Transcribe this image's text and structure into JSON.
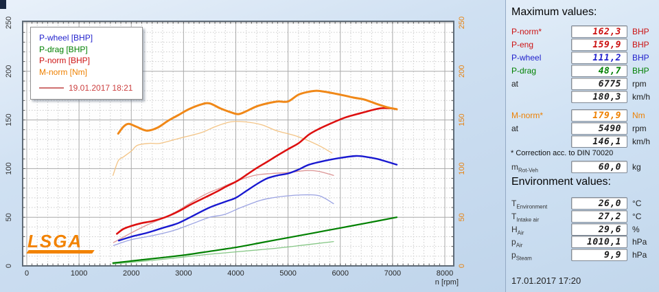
{
  "chart": {
    "x_label": "n [rpm]",
    "x_ticks": [
      "0",
      "1000",
      "2000",
      "3000",
      "4000",
      "5000",
      "6000",
      "7000",
      "8000"
    ],
    "y_ticks_left": [
      "0",
      "50",
      "100",
      "150",
      "200",
      "250"
    ],
    "y_ticks_right": [
      "0",
      "50",
      "100",
      "150",
      "200",
      "250"
    ],
    "legend": {
      "items": [
        {
          "label": "P-wheel [BHP]",
          "color": "#2020cc"
        },
        {
          "label": "P-drag [BHP]",
          "color": "#008000"
        },
        {
          "label": "P-norm [BHP]",
          "color": "#cc1111"
        },
        {
          "label": "M-norm [Nm]",
          "color": "#ee8000"
        }
      ],
      "ref_date_label": "19.01.2017 18:21",
      "ref_color": "#cc4040"
    },
    "logo_text": "LSGA"
  },
  "chart_data": {
    "type": "line",
    "xlabel": "n [rpm]",
    "x_range": [
      0,
      8000
    ],
    "y_range_left_BHP": [
      0,
      250
    ],
    "y_range_right_Nm": [
      0,
      250
    ],
    "grid": "major 1000 rpm / 50 units solid, minor 200 rpm / 10 units dotted",
    "legend_position": "top-left",
    "series": [
      {
        "name": "P-drag-ref",
        "unit": "BHP",
        "run": "reference-19.01.2017",
        "color": "#85c785",
        "width": 1.3,
        "points": [
          [
            1650,
            2
          ],
          [
            2645,
            7
          ],
          [
            3500,
            12
          ],
          [
            4750,
            18
          ],
          [
            5400,
            22
          ],
          [
            5870,
            25
          ]
        ]
      },
      {
        "name": "P-wheel-ref",
        "unit": "BHP",
        "run": "reference-19.01.2017",
        "color": "#9aa2e2",
        "width": 1.3,
        "points": [
          [
            1660,
            21
          ],
          [
            2000,
            27
          ],
          [
            2300,
            30
          ],
          [
            2645,
            34
          ],
          [
            2900,
            38
          ],
          [
            3200,
            44
          ],
          [
            3500,
            50
          ],
          [
            3790,
            53
          ],
          [
            4100,
            60
          ],
          [
            4450,
            67
          ],
          [
            4700,
            70
          ],
          [
            5000,
            72
          ],
          [
            5300,
            73
          ],
          [
            5600,
            72
          ],
          [
            5870,
            64
          ]
        ]
      },
      {
        "name": "P-norm-ref",
        "unit": "BHP",
        "run": "reference-19.01.2017",
        "color": "#dc9494",
        "width": 1.3,
        "points": [
          [
            1660,
            24
          ],
          [
            2000,
            34
          ],
          [
            2300,
            42
          ],
          [
            2645,
            50
          ],
          [
            2900,
            57
          ],
          [
            3170,
            66
          ],
          [
            3435,
            74
          ],
          [
            3700,
            80
          ],
          [
            3960,
            86
          ],
          [
            4355,
            93
          ],
          [
            4700,
            95
          ],
          [
            5000,
            96
          ],
          [
            5365,
            98
          ],
          [
            5600,
            97
          ],
          [
            5870,
            93
          ]
        ]
      },
      {
        "name": "M-norm-ref",
        "unit": "Nm",
        "run": "reference-19.01.2017",
        "color": "#f3c384",
        "width": 1.3,
        "points": [
          [
            1650,
            93
          ],
          [
            1750,
            108
          ],
          [
            1850,
            112
          ],
          [
            2000,
            118
          ],
          [
            2120,
            124
          ],
          [
            2350,
            126
          ],
          [
            2550,
            126
          ],
          [
            2910,
            131
          ],
          [
            3340,
            137
          ],
          [
            3600,
            143
          ],
          [
            3900,
            148
          ],
          [
            4180,
            148
          ],
          [
            4500,
            145
          ],
          [
            4780,
            139
          ],
          [
            5185,
            133
          ],
          [
            5580,
            124
          ],
          [
            5840,
            116
          ]
        ]
      },
      {
        "name": "P-drag",
        "unit": "BHP",
        "run": "current-17.01.2017",
        "color": "#008000",
        "width": 2.2,
        "points": [
          [
            1650,
            3
          ],
          [
            2000,
            5
          ],
          [
            2500,
            8
          ],
          [
            3000,
            11
          ],
          [
            3500,
            15
          ],
          [
            4000,
            19
          ],
          [
            4500,
            24
          ],
          [
            5000,
            29
          ],
          [
            5500,
            34
          ],
          [
            6000,
            39
          ],
          [
            6500,
            44
          ],
          [
            7080,
            50
          ]
        ]
      },
      {
        "name": "P-wheel",
        "unit": "BHP",
        "run": "current-17.01.2017",
        "color": "#1818d0",
        "width": 2.4,
        "points": [
          [
            1760,
            26
          ],
          [
            2000,
            30
          ],
          [
            2300,
            34
          ],
          [
            2600,
            39
          ],
          [
            2900,
            44
          ],
          [
            3200,
            52
          ],
          [
            3500,
            60
          ],
          [
            3800,
            66
          ],
          [
            4000,
            70
          ],
          [
            4200,
            77
          ],
          [
            4400,
            84
          ],
          [
            4600,
            90
          ],
          [
            4800,
            93
          ],
          [
            5000,
            95
          ],
          [
            5200,
            99
          ],
          [
            5400,
            104
          ],
          [
            5700,
            108
          ],
          [
            6000,
            111
          ],
          [
            6300,
            113
          ],
          [
            6500,
            112
          ],
          [
            6700,
            110
          ],
          [
            6900,
            107
          ],
          [
            7080,
            104
          ]
        ]
      },
      {
        "name": "P-norm",
        "unit": "BHP",
        "run": "current-17.01.2017",
        "color": "#dd1010",
        "width": 2.6,
        "points": [
          [
            1725,
            33
          ],
          [
            1850,
            38
          ],
          [
            2000,
            41
          ],
          [
            2200,
            44
          ],
          [
            2400,
            46
          ],
          [
            2650,
            50
          ],
          [
            2900,
            56
          ],
          [
            3170,
            64
          ],
          [
            3435,
            71
          ],
          [
            3660,
            77
          ],
          [
            3830,
            82
          ],
          [
            4050,
            88
          ],
          [
            4355,
            99
          ],
          [
            4600,
            107
          ],
          [
            4780,
            113
          ],
          [
            5000,
            120
          ],
          [
            5200,
            126
          ],
          [
            5400,
            135
          ],
          [
            5600,
            141
          ],
          [
            5800,
            146
          ],
          [
            6065,
            152
          ],
          [
            6250,
            155
          ],
          [
            6460,
            158
          ],
          [
            6600,
            160
          ],
          [
            6775,
            162
          ],
          [
            6950,
            162
          ],
          [
            7080,
            161
          ]
        ]
      },
      {
        "name": "M-norm",
        "unit": "Nm",
        "run": "current-17.01.2017",
        "color": "#f08818",
        "width": 3,
        "points": [
          [
            1750,
            136
          ],
          [
            1850,
            143
          ],
          [
            1950,
            146
          ],
          [
            2100,
            143
          ],
          [
            2300,
            139
          ],
          [
            2500,
            142
          ],
          [
            2700,
            149
          ],
          [
            2900,
            155
          ],
          [
            3100,
            161
          ],
          [
            3340,
            166
          ],
          [
            3500,
            167
          ],
          [
            3700,
            162
          ],
          [
            3900,
            158
          ],
          [
            4050,
            156
          ],
          [
            4200,
            159
          ],
          [
            4400,
            164
          ],
          [
            4600,
            167
          ],
          [
            4800,
            169
          ],
          [
            5000,
            169
          ],
          [
            5200,
            176
          ],
          [
            5400,
            179
          ],
          [
            5550,
            180
          ],
          [
            5700,
            179
          ],
          [
            6000,
            176
          ],
          [
            6250,
            173
          ],
          [
            6460,
            171
          ],
          [
            6720,
            166
          ],
          [
            6900,
            163
          ],
          [
            7080,
            161
          ]
        ]
      }
    ]
  },
  "panel": {
    "max_heading": "Maximum values:",
    "max_rows": [
      {
        "label": "P-norm*",
        "value": "162,3",
        "unit": "BHP"
      },
      {
        "label": "P-eng",
        "value": "159,9",
        "unit": "BHP"
      },
      {
        "label": "P-wheel",
        "value": "111,2",
        "unit": "BHP"
      },
      {
        "label": "P-drag",
        "value": "48,7",
        "unit": "BHP"
      },
      {
        "label": "at",
        "value": "6775",
        "unit": "rpm"
      },
      {
        "label": "",
        "value": "180,3",
        "unit": "km/h"
      }
    ],
    "torque_rows": [
      {
        "label": "M-norm*",
        "value": "179,9",
        "unit": "Nm"
      },
      {
        "label": "at",
        "value": "5490",
        "unit": "rpm"
      },
      {
        "label": "",
        "value": "146,1",
        "unit": "km/h"
      }
    ],
    "correction_note": "* Correction acc. to DIN 70020",
    "mass_row": {
      "label": "m",
      "sub": "Rot-Veh",
      "value": "60,0",
      "unit": "kg"
    },
    "env_heading": "Environment values:",
    "env_rows": [
      {
        "label": "T",
        "sub": "Environment",
        "value": "26,0",
        "unit": "°C"
      },
      {
        "label": "T",
        "sub": "Intake air",
        "value": "27,2",
        "unit": "°C"
      },
      {
        "label": "H",
        "sub": "Air",
        "value": "29,6",
        "unit": "%"
      },
      {
        "label": "p",
        "sub": "Air",
        "value": "1010,1",
        "unit": "hPa"
      },
      {
        "label": "p",
        "sub": "Steam",
        "value": "9,9",
        "unit": "hPa"
      }
    ],
    "measure_datetime": "17.01.2017  17:20"
  },
  "colors": {
    "p_wheel": "#1818d0",
    "p_drag": "#008000",
    "p_norm": "#dd1010",
    "m_norm": "#f08818",
    "background": "#cfe0f2",
    "axis_right": "#e8820e"
  }
}
